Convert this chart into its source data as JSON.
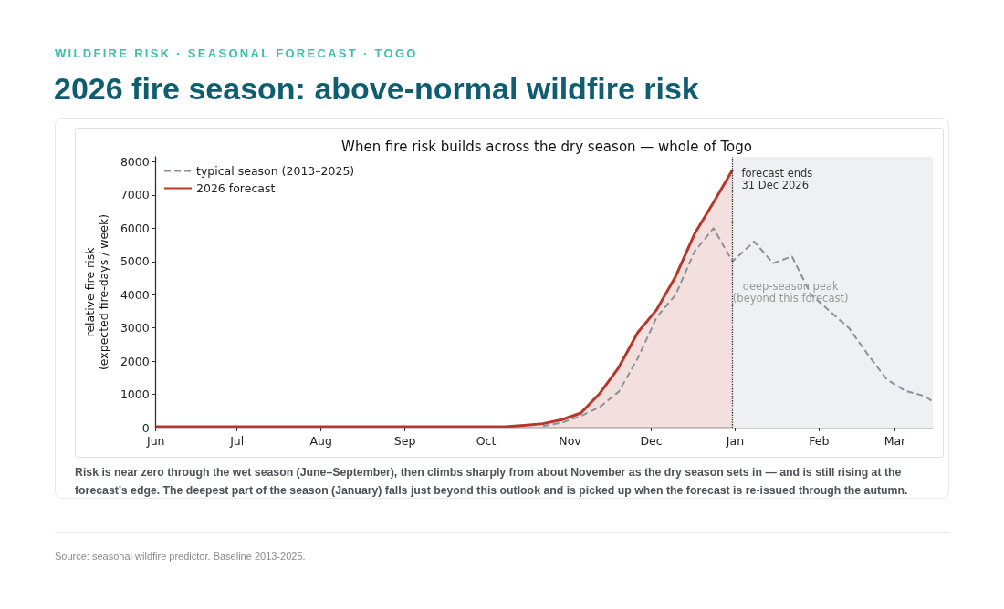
{
  "chart_data": {
    "type": "line",
    "title": "2026 fire season: above-normal wildfire risk",
    "subtitle": "When fire risk builds across the dry season — whole of Togo",
    "ylabel": "relative fire risk\n(expected fire-days / week)",
    "xlim": [
      "2026-06-01",
      "2027-03-15"
    ],
    "xticks": [
      {
        "value": "2026-06-01",
        "label": "Jun"
      },
      {
        "value": "2026-07-01",
        "label": "Jul"
      },
      {
        "value": "2026-08-01",
        "label": "Aug"
      },
      {
        "value": "2026-09-01",
        "label": "Sep"
      },
      {
        "value": "2026-10-01",
        "label": "Oct"
      },
      {
        "value": "2026-11-01",
        "label": "Nov"
      },
      {
        "value": "2026-12-01",
        "label": "Dec"
      },
      {
        "value": "2027-01-01",
        "label": "Jan"
      },
      {
        "value": "2027-02-01",
        "label": "Feb"
      },
      {
        "value": "2027-03-01",
        "label": "Mar"
      }
    ],
    "ylim": [
      0,
      8150
    ],
    "yticks": [
      0,
      1000,
      2000,
      3000,
      4000,
      5000,
      6000,
      7000,
      8000
    ],
    "series": [
      {
        "name": "typical season (2013–2025)",
        "type": "line",
        "line_style": "dashed",
        "color": "#8c9099",
        "x": [
          "2026-10-22",
          "2026-10-29",
          "2026-11-05",
          "2026-11-12",
          "2026-11-19",
          "2026-11-26",
          "2026-12-03",
          "2026-12-10",
          "2026-12-17",
          "2026-12-24",
          "2026-12-31",
          "2027-01-08",
          "2027-01-15",
          "2027-01-22",
          "2027-01-29",
          "2027-02-05",
          "2027-02-12",
          "2027-02-19",
          "2027-02-26",
          "2027-03-05",
          "2027-03-12",
          "2027-03-15"
        ],
        "values": [
          50,
          150,
          350,
          620,
          1080,
          2080,
          3320,
          4000,
          5300,
          6000,
          5000,
          5600,
          4950,
          5150,
          4000,
          3500,
          3000,
          2200,
          1450,
          1100,
          950,
          780
        ]
      },
      {
        "name": "2026 forecast",
        "type": "area",
        "line_style": "solid",
        "color": "#b5382a",
        "x": [
          "2026-06-01",
          "2026-07-01",
          "2026-08-01",
          "2026-09-01",
          "2026-10-01",
          "2026-10-08",
          "2026-10-15",
          "2026-10-22",
          "2026-10-29",
          "2026-11-05",
          "2026-11-12",
          "2026-11-19",
          "2026-11-26",
          "2026-12-03",
          "2026-12-10",
          "2026-12-17",
          "2026-12-24",
          "2026-12-31"
        ],
        "values": [
          30,
          30,
          30,
          30,
          30,
          30,
          70,
          120,
          240,
          440,
          1030,
          1810,
          2860,
          3550,
          4550,
          5830,
          6780,
          7750
        ]
      }
    ],
    "ref_lines": [
      {
        "axis": "x",
        "value": "2026-12-31",
        "label": "forecast ends\n31 Dec 2026",
        "color": "#333333",
        "line_style": "dotted"
      }
    ],
    "bands": [
      {
        "axis": "x",
        "from": "2026-12-31",
        "to": "2027-03-15",
        "color": "#eff0f4",
        "label": "deep-season peak\n(beyond this forecast)"
      }
    ],
    "annotations": [
      "WILDFIRE RISK · SEASONAL FORECAST · TOGO",
      "Risk is near zero through the wet season (June–September), then climbs sharply from about November as the dry season sets in — and is still rising at the forecast’s edge. The deepest part of the season (January) falls just beyond this outlook and is picked up when the forecast is re-issued through the autumn.",
      "Source: seasonal wildfire predictor. Baseline 2013-2025."
    ],
    "legend": "top left",
    "grid": false,
    "marker": "none"
  }
}
